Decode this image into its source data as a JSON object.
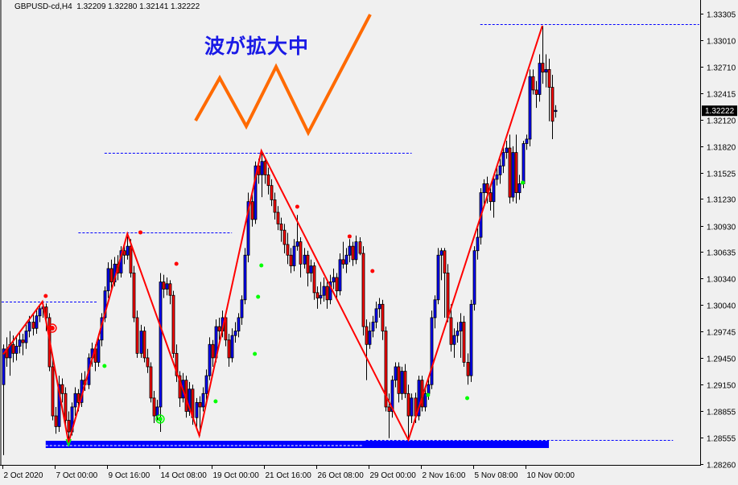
{
  "header": {
    "symbol": "GBPUSD-cd,H4",
    "ohlc_text": "1.32209 1.32280 1.32141 1.32222"
  },
  "annotation": {
    "text": "波が拡大中",
    "color": "#1a1ae6",
    "line_color": "#ff6a00"
  },
  "current_price_label": "1.32222",
  "colors": {
    "bull": "#0000ff",
    "bear": "#ff0000",
    "zigzag": "#ff0000",
    "level": "#0000ff",
    "band": "#0000ff",
    "signal_up": "#00ff00",
    "signal_down": "#ff0000",
    "background": "#f0f0f0"
  },
  "chart_data": {
    "type": "candlestick",
    "title": "GBPUSD-cd,H4",
    "ylim": [
      1.2826,
      1.33305
    ],
    "y_ticks": [
      "1.33305",
      "1.33010",
      "1.32710",
      "1.32415",
      "1.32120",
      "1.31820",
      "1.31525",
      "1.31230",
      "1.30930",
      "1.30635",
      "1.30340",
      "1.30040",
      "1.29745",
      "1.29450",
      "1.29150",
      "1.28855",
      "1.28555",
      "1.28260"
    ],
    "x_ticks": [
      {
        "bar": 0,
        "label": "2 Oct 2020"
      },
      {
        "bar": 16,
        "label": "7 Oct 00:00"
      },
      {
        "bar": 32,
        "label": "9 Oct 16:00"
      },
      {
        "bar": 48,
        "label": "14 Oct 08:00"
      },
      {
        "bar": 64,
        "label": "19 Oct 00:00"
      },
      {
        "bar": 80,
        "label": "21 Oct 16:00"
      },
      {
        "bar": 96,
        "label": "26 Oct 08:00"
      },
      {
        "bar": 112,
        "label": "29 Oct 00:00"
      },
      {
        "bar": 128,
        "label": "2 Nov 16:00"
      },
      {
        "bar": 144,
        "label": "5 Nov 08:00"
      },
      {
        "bar": 160,
        "label": "10 Nov 00:00"
      }
    ],
    "candles_ohlc": [
      [
        1.2915,
        1.296,
        1.2836,
        1.2955
      ],
      [
        1.2955,
        1.2968,
        1.2935,
        1.2945
      ],
      [
        1.2945,
        1.2975,
        1.2925,
        1.296
      ],
      [
        1.296,
        1.297,
        1.294,
        1.295
      ],
      [
        1.295,
        1.2968,
        1.2942,
        1.2958
      ],
      [
        1.2958,
        1.2975,
        1.295,
        1.2965
      ],
      [
        1.2965,
        1.2972,
        1.2948,
        1.2962
      ],
      [
        1.2962,
        1.2985,
        1.2955,
        1.2975
      ],
      [
        1.2975,
        1.2992,
        1.2968,
        1.2985
      ],
      [
        1.2985,
        1.2995,
        1.297,
        1.2978
      ],
      [
        1.2978,
        1.3,
        1.2972,
        1.2992
      ],
      [
        1.2992,
        1.3005,
        1.2985,
        1.3
      ],
      [
        1.3,
        1.3008,
        1.299,
        1.3002
      ],
      [
        1.3002,
        1.3006,
        1.2975,
        1.299
      ],
      [
        1.299,
        1.2995,
        1.293,
        1.2935
      ],
      [
        1.2935,
        1.2945,
        1.2875,
        1.288
      ],
      [
        1.288,
        1.289,
        1.286,
        1.2868
      ],
      [
        1.2868,
        1.2925,
        1.2862,
        1.2915
      ],
      [
        1.2915,
        1.2922,
        1.2895,
        1.2905
      ],
      [
        1.2905,
        1.2912,
        1.287,
        1.2875
      ],
      [
        1.2875,
        1.2885,
        1.285,
        1.2862
      ],
      [
        1.2862,
        1.2895,
        1.2858,
        1.289
      ],
      [
        1.289,
        1.2912,
        1.288,
        1.2905
      ],
      [
        1.2905,
        1.291,
        1.2885,
        1.2895
      ],
      [
        1.2895,
        1.2928,
        1.289,
        1.292
      ],
      [
        1.292,
        1.293,
        1.2908,
        1.2915
      ],
      [
        1.2915,
        1.295,
        1.291,
        1.2945
      ],
      [
        1.2945,
        1.2962,
        1.2935,
        1.2955
      ],
      [
        1.2955,
        1.296,
        1.293,
        1.294
      ],
      [
        1.294,
        1.2972,
        1.2935,
        1.2965
      ],
      [
        1.2965,
        1.2995,
        1.2958,
        1.299
      ],
      [
        1.299,
        1.3025,
        1.2985,
        1.302
      ],
      [
        1.302,
        1.3052,
        1.3012,
        1.3045
      ],
      [
        1.3045,
        1.3055,
        1.3022,
        1.303
      ],
      [
        1.303,
        1.3058,
        1.3025,
        1.305
      ],
      [
        1.305,
        1.306,
        1.3032,
        1.304
      ],
      [
        1.304,
        1.307,
        1.3035,
        1.3065
      ],
      [
        1.3065,
        1.3072,
        1.305,
        1.306
      ],
      [
        1.306,
        1.3084,
        1.3055,
        1.307
      ],
      [
        1.307,
        1.3078,
        1.3035,
        1.304
      ],
      [
        1.304,
        1.3048,
        1.2985,
        1.299
      ],
      [
        1.299,
        1.2998,
        1.2945,
        1.295
      ],
      [
        1.295,
        1.2982,
        1.2945,
        1.2975
      ],
      [
        1.2975,
        1.298,
        1.294,
        1.2945
      ],
      [
        1.2945,
        1.2955,
        1.2928,
        1.2935
      ],
      [
        1.2935,
        1.294,
        1.2895,
        1.29
      ],
      [
        1.29,
        1.2908,
        1.2872,
        1.288
      ],
      [
        1.288,
        1.2898,
        1.2875,
        1.289
      ],
      [
        1.289,
        1.304,
        1.2862,
        1.303
      ],
      [
        1.303,
        1.3038,
        1.3012,
        1.3022
      ],
      [
        1.3022,
        1.3035,
        1.3015,
        1.3028
      ],
      [
        1.3028,
        1.3032,
        1.3005,
        1.3015
      ],
      [
        1.3015,
        1.302,
        1.2945,
        1.295
      ],
      [
        1.295,
        1.296,
        1.2918,
        1.2925
      ],
      [
        1.2925,
        1.293,
        1.289,
        1.29
      ],
      [
        1.29,
        1.2928,
        1.2895,
        1.292
      ],
      [
        1.292,
        1.2925,
        1.2878,
        1.2885
      ],
      [
        1.2885,
        1.2918,
        1.288,
        1.291
      ],
      [
        1.291,
        1.2915,
        1.287,
        1.2878
      ],
      [
        1.2878,
        1.29,
        1.2865,
        1.2895
      ],
      [
        1.2895,
        1.2902,
        1.2858,
        1.289
      ],
      [
        1.289,
        1.2912,
        1.2885,
        1.2905
      ],
      [
        1.2905,
        1.2932,
        1.2898,
        1.2925
      ],
      [
        1.2925,
        1.2968,
        1.292,
        1.296
      ],
      [
        1.296,
        1.2965,
        1.2935,
        1.2945
      ],
      [
        1.2945,
        1.2988,
        1.294,
        1.298
      ],
      [
        1.298,
        1.299,
        1.2965,
        1.2975
      ],
      [
        1.2975,
        1.2998,
        1.2968,
        1.299
      ],
      [
        1.299,
        1.2995,
        1.2958,
        1.2965
      ],
      [
        1.2965,
        1.2972,
        1.2935,
        1.2945
      ],
      [
        1.2945,
        1.2978,
        1.294,
        1.297
      ],
      [
        1.297,
        1.2985,
        1.2962,
        1.2975
      ],
      [
        1.2975,
        1.2995,
        1.2968,
        1.299
      ],
      [
        1.299,
        1.3015,
        1.2982,
        1.301
      ],
      [
        1.301,
        1.3068,
        1.3005,
        1.306
      ],
      [
        1.306,
        1.313,
        1.3052,
        1.312
      ],
      [
        1.312,
        1.3128,
        1.3092,
        1.31
      ],
      [
        1.31,
        1.3165,
        1.3095,
        1.316
      ],
      [
        1.316,
        1.3168,
        1.314,
        1.315
      ],
      [
        1.315,
        1.3177,
        1.3125,
        1.3165
      ],
      [
        1.3165,
        1.317,
        1.314,
        1.315
      ],
      [
        1.315,
        1.3158,
        1.3128,
        1.3138
      ],
      [
        1.3138,
        1.3145,
        1.3115,
        1.3122
      ],
      [
        1.3122,
        1.313,
        1.31,
        1.3108
      ],
      [
        1.3108,
        1.3115,
        1.3088,
        1.3095
      ],
      [
        1.3095,
        1.3102,
        1.3075,
        1.3088
      ],
      [
        1.3088,
        1.3095,
        1.3062,
        1.3072
      ],
      [
        1.3072,
        1.3085,
        1.305,
        1.306
      ],
      [
        1.306,
        1.3068,
        1.304,
        1.3048
      ],
      [
        1.3048,
        1.3078,
        1.3042,
        1.307
      ],
      [
        1.307,
        1.3105,
        1.3065,
        1.3075
      ],
      [
        1.3075,
        1.308,
        1.3035,
        1.305
      ],
      [
        1.305,
        1.3068,
        1.3045,
        1.306
      ],
      [
        1.306,
        1.3065,
        1.3025,
        1.304
      ],
      [
        1.304,
        1.3055,
        1.303,
        1.3048
      ],
      [
        1.3048,
        1.3052,
        1.301,
        1.3018
      ],
      [
        1.3018,
        1.3025,
        1.3,
        1.3012
      ],
      [
        1.3012,
        1.303,
        1.3005,
        1.3015
      ],
      [
        1.3015,
        1.3035,
        1.3008,
        1.3025
      ],
      [
        1.3025,
        1.303,
        1.3,
        1.301
      ],
      [
        1.301,
        1.3038,
        1.3005,
        1.303
      ],
      [
        1.303,
        1.3045,
        1.3022,
        1.3035
      ],
      [
        1.3035,
        1.304,
        1.3012,
        1.302
      ],
      [
        1.302,
        1.3062,
        1.3015,
        1.3055
      ],
      [
        1.3055,
        1.3075,
        1.3045,
        1.305
      ],
      [
        1.305,
        1.3068,
        1.304,
        1.306
      ],
      [
        1.306,
        1.3078,
        1.3052,
        1.307
      ],
      [
        1.307,
        1.3075,
        1.3048,
        1.3055
      ],
      [
        1.3055,
        1.3082,
        1.305,
        1.3075
      ],
      [
        1.3075,
        1.308,
        1.306,
        1.3062
      ],
      [
        1.3062,
        1.307,
        1.297,
        1.298
      ],
      [
        1.298,
        1.2988,
        1.292,
        1.296
      ],
      [
        1.296,
        1.2985,
        1.2955,
        1.2975
      ],
      [
        1.2975,
        1.2992,
        1.2968,
        1.2985
      ],
      [
        1.2985,
        1.3008,
        1.2978,
        1.3
      ],
      [
        1.3,
        1.3012,
        1.299,
        1.3005
      ],
      [
        1.3005,
        1.301,
        1.2965,
        1.2975
      ],
      [
        1.2975,
        1.298,
        1.2885,
        1.289
      ],
      [
        1.289,
        1.2905,
        1.2855,
        1.2885
      ],
      [
        1.2885,
        1.2925,
        1.2878,
        1.292
      ],
      [
        1.292,
        1.294,
        1.2912,
        1.2935
      ],
      [
        1.2935,
        1.294,
        1.2895,
        1.2905
      ],
      [
        1.2905,
        1.2935,
        1.2898,
        1.293
      ],
      [
        1.293,
        1.2938,
        1.29,
        1.2905
      ],
      [
        1.2905,
        1.2915,
        1.2853,
        1.288
      ],
      [
        1.288,
        1.2905,
        1.2872,
        1.29
      ],
      [
        1.29,
        1.2906,
        1.2872,
        1.288
      ],
      [
        1.288,
        1.2925,
        1.2875,
        1.292
      ],
      [
        1.292,
        1.2925,
        1.2885,
        1.289
      ],
      [
        1.289,
        1.2912,
        1.2885,
        1.2905
      ],
      [
        1.2905,
        1.2922,
        1.2898,
        1.2915
      ],
      [
        1.2915,
        1.2998,
        1.291,
        1.299
      ],
      [
        1.299,
        1.3015,
        1.2978,
        1.301
      ],
      [
        1.301,
        1.3068,
        1.3005,
        1.306
      ],
      [
        1.306,
        1.3068,
        1.3032,
        1.3065
      ],
      [
        1.3065,
        1.3068,
        1.299,
        1.304
      ],
      [
        1.304,
        1.305,
        1.2985,
        1.299
      ],
      [
        1.299,
        1.3005,
        1.2952,
        1.296
      ],
      [
        1.296,
        1.2978,
        1.2945,
        1.297
      ],
      [
        1.297,
        1.2985,
        1.2962,
        1.2975
      ],
      [
        1.2975,
        1.2995,
        1.2945,
        1.2985
      ],
      [
        1.2985,
        1.2992,
        1.2935,
        1.294
      ],
      [
        1.294,
        1.295,
        1.2915,
        1.2925
      ],
      [
        1.2925,
        1.301,
        1.2918,
        1.3005
      ],
      [
        1.3005,
        1.307,
        1.2998,
        1.3065
      ],
      [
        1.3065,
        1.309,
        1.3055,
        1.308
      ],
      [
        1.308,
        1.3135,
        1.3072,
        1.313
      ],
      [
        1.313,
        1.3145,
        1.3115,
        1.314
      ],
      [
        1.314,
        1.3148,
        1.3118,
        1.313
      ],
      [
        1.313,
        1.3135,
        1.311,
        1.312
      ],
      [
        1.312,
        1.315,
        1.3102,
        1.3145
      ],
      [
        1.3145,
        1.3158,
        1.3138,
        1.315
      ],
      [
        1.315,
        1.3168,
        1.314,
        1.316
      ],
      [
        1.316,
        1.3182,
        1.3152,
        1.3175
      ],
      [
        1.3175,
        1.3188,
        1.3168,
        1.318
      ],
      [
        1.318,
        1.3195,
        1.3118,
        1.3125
      ],
      [
        1.3125,
        1.3182,
        1.312,
        1.3175
      ],
      [
        1.3175,
        1.3195,
        1.3118,
        1.313
      ],
      [
        1.313,
        1.315,
        1.3122,
        1.314
      ],
      [
        1.314,
        1.3188,
        1.3135,
        1.3185
      ],
      [
        1.3185,
        1.3195,
        1.3178,
        1.319
      ],
      [
        1.319,
        1.3268,
        1.3182,
        1.326
      ],
      [
        1.326,
        1.3268,
        1.324,
        1.3245
      ],
      [
        1.3245,
        1.3255,
        1.3225,
        1.324
      ],
      [
        1.324,
        1.3285,
        1.3232,
        1.3275
      ],
      [
        1.3275,
        1.3317,
        1.3252,
        1.3265
      ],
      [
        1.3265,
        1.3285,
        1.3248,
        1.3268
      ],
      [
        1.3268,
        1.328,
        1.321,
        1.3248
      ],
      [
        1.3248,
        1.3262,
        1.319,
        1.321
      ],
      [
        1.32209,
        1.3228,
        1.32141,
        1.32222
      ]
    ],
    "zigzag": [
      [
        0,
        1.2949
      ],
      [
        12,
        1.3008
      ],
      [
        20,
        1.285
      ],
      [
        38,
        1.3084
      ],
      [
        60,
        1.2858
      ],
      [
        79,
        1.3177
      ],
      [
        124,
        1.2853
      ],
      [
        165,
        1.3317
      ]
    ],
    "levels": [
      {
        "price": 1.3008,
        "from_bar": -1,
        "to_bar": 29
      },
      {
        "price": 1.30855,
        "from_bar": 23,
        "to_bar": 70
      },
      {
        "price": 1.31746,
        "from_bar": 31,
        "to_bar": 125
      },
      {
        "price": 1.33188,
        "from_bar": 146,
        "to_bar": 213
      },
      {
        "price": 1.2853,
        "from_bar": 111,
        "to_bar": 205
      }
    ],
    "support_band": {
      "high": 1.28521,
      "low": 1.2844,
      "from_bar": 13,
      "to_bar": 167,
      "inner_dash_price": 1.28467,
      "inner_dash_to_bar": 110
    },
    "sell_signals": [
      [
        13,
        1.30143
      ],
      [
        42,
        1.30855
      ],
      [
        53,
        1.30503
      ],
      [
        90,
        1.31143
      ],
      [
        106,
        1.3081
      ],
      [
        113,
        1.30422
      ]
    ],
    "buy_signals": [
      [
        31,
        1.29359
      ],
      [
        79,
        1.30485
      ],
      [
        78,
        1.30134
      ],
      [
        77,
        1.29494
      ],
      [
        65,
        1.28963
      ],
      [
        130,
        1.29035
      ],
      [
        142,
        1.28999
      ],
      [
        159,
        1.31413
      ]
    ],
    "sell_rings": [
      [
        15,
        1.29783
      ]
    ],
    "buy_rings": [
      [
        48,
        1.28765
      ]
    ],
    "buy_arrows": [
      [
        20,
        1.28503
      ]
    ]
  }
}
